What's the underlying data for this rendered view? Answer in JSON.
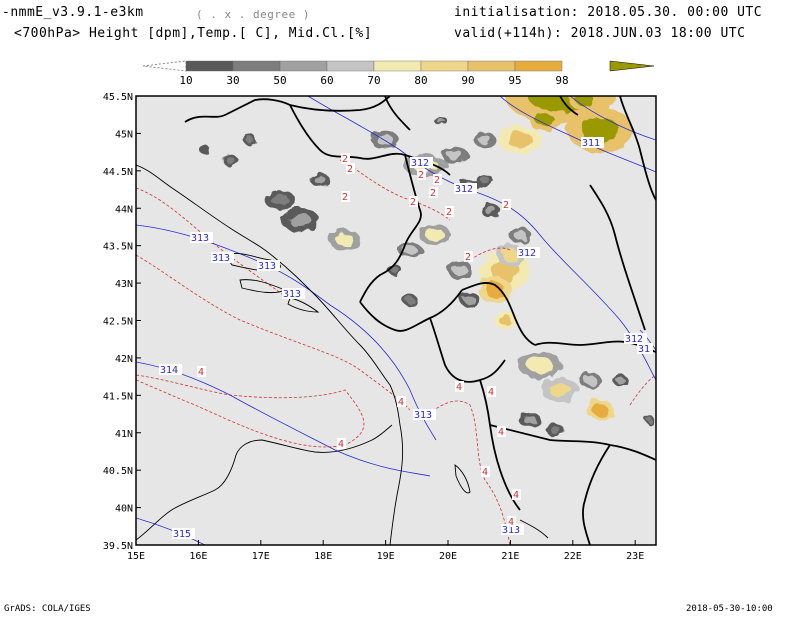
{
  "header": {
    "model": "-nmmE_v3.9.1-e3km",
    "grid_note": "( . x . degree )",
    "fields": "<700hPa> Height [dpm],Temp.[ C], Mid.Cl.[%]",
    "init": "initialisation: 2018.05.30. 00:00 UTC",
    "valid": "valid(+114h): 2018.JUN.03 18:00 UTC"
  },
  "colorbar": {
    "labels": [
      "10",
      "30",
      "50",
      "60",
      "70",
      "80",
      "90",
      "95",
      "98"
    ],
    "colors": [
      "#5a5a5a",
      "#7d7d7d",
      "#a0a0a0",
      "#c4c4c4",
      "#f2eab0",
      "#eed68a",
      "#e8c26a",
      "#e6ac3c",
      "#9a9a00"
    ]
  },
  "map": {
    "background": "#e6e6e6",
    "lat_labels": [
      "45.5N",
      "45N",
      "44.5N",
      "44N",
      "43.5N",
      "43N",
      "42.5N",
      "42N",
      "41.5N",
      "41N",
      "40.5N",
      "40N",
      "39.5N"
    ],
    "lon_labels": [
      "15E",
      "16E",
      "17E",
      "18E",
      "19E",
      "20E",
      "21E",
      "22E",
      "23E"
    ],
    "height_labels": [
      "312",
      "312",
      "311",
      "313",
      "313",
      "313",
      "313",
      "312",
      "312",
      "31",
      "314",
      "313",
      "315",
      "313"
    ],
    "temp_labels": [
      "2",
      "2",
      "2",
      "2",
      "2",
      "2",
      "2",
      "2",
      "2",
      "2",
      "4",
      "4",
      "4",
      "4",
      "4",
      "4",
      "4",
      "4",
      "4"
    ],
    "height_color": "#2a2ad8",
    "temp_color": "#d83030"
  },
  "footer": {
    "left": "GrADS: COLA/IGES",
    "right": "2018-05-30-10:00"
  }
}
